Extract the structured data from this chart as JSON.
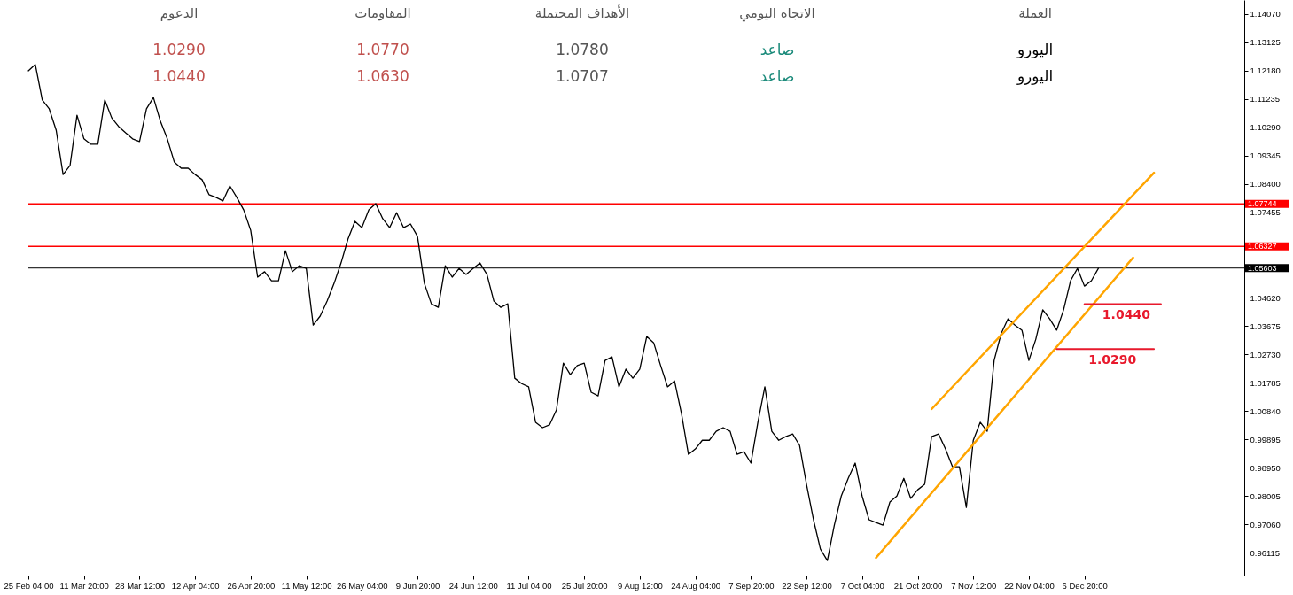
{
  "chart_data": {
    "type": "line",
    "categories": [
      "25 Feb 04:00",
      null,
      null,
      null,
      null,
      null,
      null,
      null,
      "11 Mar 20:00",
      null,
      null,
      null,
      null,
      null,
      null,
      null,
      "28 Mar 12:00",
      null,
      null,
      null,
      null,
      null,
      null,
      null,
      "12 Apr 04:00",
      null,
      null,
      null,
      null,
      null,
      null,
      null,
      "26 Apr 20:00",
      null,
      null,
      null,
      null,
      null,
      null,
      null,
      "11 May 12:00",
      null,
      null,
      null,
      null,
      null,
      null,
      null,
      "26 May 04:00",
      null,
      null,
      null,
      null,
      null,
      null,
      null,
      "9 Jun 20:00",
      null,
      null,
      null,
      null,
      null,
      null,
      null,
      "24 Jun 12:00",
      null,
      null,
      null,
      null,
      null,
      null,
      null,
      "11 Jul 04:00",
      null,
      null,
      null,
      null,
      null,
      null,
      null,
      "25 Jul 20:00",
      null,
      null,
      null,
      null,
      null,
      null,
      null,
      "9 Aug 12:00",
      null,
      null,
      null,
      null,
      null,
      null,
      null,
      "24 Aug 04:00",
      null,
      null,
      null,
      null,
      null,
      null,
      null,
      "7 Sep 20:00",
      null,
      null,
      null,
      null,
      null,
      null,
      null,
      "22 Sep 12:00",
      null,
      null,
      null,
      null,
      null,
      null,
      null,
      "7 Oct 04:00",
      null,
      null,
      null,
      null,
      null,
      null,
      null,
      "21 Oct 20:00",
      null,
      null,
      null,
      null,
      null,
      null,
      null,
      "7 Nov 12:00",
      null,
      null,
      null,
      null,
      null,
      null,
      null,
      "22 Nov 04:00",
      null,
      null,
      null,
      null,
      null,
      null,
      null,
      "6 Dec 20:00",
      null,
      null,
      null,
      null,
      null,
      null,
      null,
      null,
      null,
      null,
      null,
      null,
      null,
      null,
      null,
      null,
      null,
      null,
      null,
      null,
      null,
      null,
      null
    ],
    "series": [
      {
        "color": "#000000",
        "values": [
          1.1218,
          1.1239,
          1.1121,
          1.1091,
          1.102,
          1.0872,
          1.0902,
          1.107,
          1.0991,
          1.0973,
          1.0973,
          1.1121,
          1.1061,
          1.1032,
          1.1011,
          1.0991,
          1.0982,
          1.1091,
          1.1129,
          1.105,
          1.0991,
          1.0914,
          1.0893,
          1.0893,
          1.0872,
          1.0855,
          1.0805,
          1.0796,
          1.0784,
          1.0834,
          1.0796,
          1.0754,
          1.0686,
          1.053,
          1.0548,
          1.0518,
          1.0518,
          1.0618,
          1.0548,
          1.0568,
          1.0559,
          1.037,
          1.04,
          1.045,
          1.0509,
          1.0577,
          1.0657,
          1.0716,
          1.0695,
          1.0754,
          1.0775,
          1.0725,
          1.0695,
          1.0745,
          1.0695,
          1.0707,
          1.0666,
          1.0509,
          1.0441,
          1.0429,
          1.0568,
          1.053,
          1.0559,
          1.0539,
          1.0559,
          1.0577,
          1.0539,
          1.045,
          1.0429,
          1.0441,
          1.0193,
          1.0175,
          1.0164,
          1.0046,
          1.0028,
          1.0037,
          1.0087,
          1.0243,
          1.0205,
          1.0235,
          1.0243,
          1.0146,
          1.0134,
          1.0252,
          1.0264,
          1.0164,
          1.0223,
          1.0193,
          1.0223,
          1.0332,
          1.0311,
          1.0235,
          1.0164,
          1.0184,
          1.0075,
          0.9939,
          0.9957,
          0.9986,
          0.9986,
          1.0016,
          1.0028,
          1.0016,
          0.9939,
          0.9948,
          0.991,
          1.0046,
          1.0164,
          1.0016,
          0.9986,
          0.9998,
          1.0007,
          0.9969,
          0.9839,
          0.9721,
          0.9623,
          0.9585,
          0.9703,
          0.98,
          0.9859,
          0.991,
          0.98,
          0.9721,
          0.9712,
          0.9703,
          0.978,
          0.98,
          0.9859,
          0.9792,
          0.9821,
          0.9839,
          0.9998,
          1.0007,
          0.9957,
          0.9898,
          0.9898,
          0.9762,
          0.9986,
          1.0046,
          1.0016,
          1.0252,
          1.0341,
          1.0391,
          1.037,
          1.0353,
          1.0252,
          1.0323,
          1.0421,
          1.0391,
          1.0353,
          1.0421,
          1.0518,
          1.0559,
          1.05,
          1.0518,
          1.0559,
          null,
          null,
          null,
          null,
          null,
          null,
          null,
          null,
          null,
          null,
          null,
          null,
          null,
          null,
          null,
          null,
          null,
          null,
          null,
          null,
          null
        ]
      },
      {
        "color": "#ffa500",
        "values": [
          null,
          null,
          null,
          null,
          null,
          null,
          null,
          null,
          null,
          null,
          null,
          null,
          null,
          null,
          null,
          null,
          null,
          null,
          null,
          null,
          null,
          null,
          null,
          null,
          null,
          null,
          null,
          null,
          null,
          null,
          null,
          null,
          null,
          null,
          null,
          null,
          null,
          null,
          null,
          null,
          null,
          null,
          null,
          null,
          null,
          null,
          null,
          null,
          null,
          null,
          null,
          null,
          null,
          null,
          null,
          null,
          null,
          null,
          null,
          null,
          null,
          null,
          null,
          null,
          null,
          null,
          null,
          null,
          null,
          null,
          null,
          null,
          null,
          null,
          null,
          null,
          null,
          null,
          null,
          null,
          null,
          null,
          null,
          null,
          null,
          null,
          null,
          null,
          null,
          null,
          null,
          null,
          null,
          null,
          null,
          null,
          null,
          null,
          null,
          null,
          null,
          null,
          null,
          null,
          null,
          null,
          null,
          null,
          null,
          null,
          null,
          null,
          null,
          null,
          null,
          null,
          null,
          null,
          null,
          null,
          null,
          null,
          null,
          null,
          null,
          null,
          null,
          null,
          null,
          null,
          1.009,
          null,
          null,
          null,
          null,
          null,
          null,
          null,
          null,
          null,
          null,
          null,
          null,
          null,
          null,
          null,
          null,
          null,
          null,
          null,
          null,
          null,
          null,
          null,
          null,
          null,
          null,
          null,
          null,
          null,
          null,
          null,
          1.0878,
          null,
          null,
          null,
          null,
          null,
          null,
          null,
          null,
          null,
          null,
          null,
          null,
          null
        ]
      },
      {
        "color": "#ffa500",
        "values": [
          null,
          null,
          null,
          null,
          null,
          null,
          null,
          null,
          null,
          null,
          null,
          null,
          null,
          null,
          null,
          null,
          null,
          null,
          null,
          null,
          null,
          null,
          null,
          null,
          null,
          null,
          null,
          null,
          null,
          null,
          null,
          null,
          null,
          null,
          null,
          null,
          null,
          null,
          null,
          null,
          null,
          null,
          null,
          null,
          null,
          null,
          null,
          null,
          null,
          null,
          null,
          null,
          null,
          null,
          null,
          null,
          null,
          null,
          null,
          null,
          null,
          null,
          null,
          null,
          null,
          null,
          null,
          null,
          null,
          null,
          null,
          null,
          null,
          null,
          null,
          null,
          null,
          null,
          null,
          null,
          null,
          null,
          null,
          null,
          null,
          null,
          null,
          null,
          null,
          null,
          null,
          null,
          null,
          null,
          null,
          null,
          null,
          null,
          null,
          null,
          null,
          null,
          null,
          null,
          null,
          null,
          null,
          null,
          null,
          null,
          null,
          null,
          null,
          null,
          null,
          null,
          null,
          null,
          null,
          null,
          null,
          null,
          0.9594,
          null,
          null,
          null,
          null,
          null,
          null,
          null,
          null,
          null,
          null,
          null,
          null,
          null,
          null,
          null,
          null,
          null,
          null,
          null,
          null,
          null,
          null,
          null,
          null,
          null,
          null,
          null,
          null,
          null,
          null,
          null,
          null,
          null,
          null,
          null,
          null,
          1.0595,
          null,
          null,
          null,
          null,
          null,
          null,
          null,
          null,
          null,
          null,
          null,
          null,
          null,
          null,
          null,
          null
        ]
      },
      {
        "name": "1.0440",
        "color": "#e8192c",
        "values": [
          null,
          null,
          null,
          null,
          null,
          null,
          null,
          null,
          null,
          null,
          null,
          null,
          null,
          null,
          null,
          null,
          null,
          null,
          null,
          null,
          null,
          null,
          null,
          null,
          null,
          null,
          null,
          null,
          null,
          null,
          null,
          null,
          null,
          null,
          null,
          null,
          null,
          null,
          null,
          null,
          null,
          null,
          null,
          null,
          null,
          null,
          null,
          null,
          null,
          null,
          null,
          null,
          null,
          null,
          null,
          null,
          null,
          null,
          null,
          null,
          null,
          null,
          null,
          null,
          null,
          null,
          null,
          null,
          null,
          null,
          null,
          null,
          null,
          null,
          null,
          null,
          null,
          null,
          null,
          null,
          null,
          null,
          null,
          null,
          null,
          null,
          null,
          null,
          null,
          null,
          null,
          null,
          null,
          null,
          null,
          null,
          null,
          null,
          null,
          null,
          null,
          null,
          null,
          null,
          null,
          null,
          null,
          null,
          null,
          null,
          null,
          null,
          null,
          null,
          null,
          null,
          null,
          null,
          null,
          null,
          null,
          null,
          null,
          null,
          null,
          null,
          null,
          null,
          null,
          null,
          null,
          null,
          null,
          null,
          null,
          null,
          null,
          null,
          null,
          null,
          null,
          null,
          null,
          null,
          null,
          null,
          null,
          null,
          null,
          null,
          null,
          null,
          1.044,
          null,
          null,
          null,
          null,
          null,
          null,
          null,
          null,
          null,
          null,
          1.044,
          null,
          null,
          null,
          null,
          null,
          null,
          null,
          null,
          null,
          null,
          null,
          null
        ]
      },
      {
        "name": "1.0290",
        "color": "#e8192c",
        "values": [
          null,
          null,
          null,
          null,
          null,
          null,
          null,
          null,
          null,
          null,
          null,
          null,
          null,
          null,
          null,
          null,
          null,
          null,
          null,
          null,
          null,
          null,
          null,
          null,
          null,
          null,
          null,
          null,
          null,
          null,
          null,
          null,
          null,
          null,
          null,
          null,
          null,
          null,
          null,
          null,
          null,
          null,
          null,
          null,
          null,
          null,
          null,
          null,
          null,
          null,
          null,
          null,
          null,
          null,
          null,
          null,
          null,
          null,
          null,
          null,
          null,
          null,
          null,
          null,
          null,
          null,
          null,
          null,
          null,
          null,
          null,
          null,
          null,
          null,
          null,
          null,
          null,
          null,
          null,
          null,
          null,
          null,
          null,
          null,
          null,
          null,
          null,
          null,
          null,
          null,
          null,
          null,
          null,
          null,
          null,
          null,
          null,
          null,
          null,
          null,
          null,
          null,
          null,
          null,
          null,
          null,
          null,
          null,
          null,
          null,
          null,
          null,
          null,
          null,
          null,
          null,
          null,
          null,
          null,
          null,
          null,
          null,
          null,
          null,
          null,
          null,
          null,
          null,
          null,
          null,
          null,
          null,
          null,
          null,
          null,
          null,
          null,
          null,
          null,
          null,
          null,
          null,
          null,
          null,
          null,
          null,
          null,
          null,
          1.029,
          null,
          null,
          null,
          null,
          null,
          null,
          null,
          null,
          null,
          null,
          null,
          null,
          null,
          1.029,
          null,
          null,
          null,
          null,
          null,
          null,
          null,
          null,
          null,
          null,
          null,
          null,
          null
        ]
      }
    ],
    "ylim": [
      0.9535,
      1.1454
    ],
    "yticks": [
      {
        "value": 1.1407,
        "label": "1.14070"
      },
      {
        "value": 1.13125,
        "label": "1.13125"
      },
      {
        "value": 1.1218,
        "label": "1.12180"
      },
      {
        "value": 1.11235,
        "label": "1.11235"
      },
      {
        "value": 1.1029,
        "label": "1.10290"
      },
      {
        "value": 1.09345,
        "label": "1.09345"
      },
      {
        "value": 1.084,
        "label": "1.08400"
      },
      {
        "value": 1.07455,
        "label": "1.07455"
      },
      {
        "value": 1.0462,
        "label": "1.04620"
      },
      {
        "value": 1.03675,
        "label": "1.03675"
      },
      {
        "value": 1.0273,
        "label": "1.02730"
      },
      {
        "value": 1.01785,
        "label": "1.01785"
      },
      {
        "value": 1.0084,
        "label": "1.00840"
      },
      {
        "value": 0.99895,
        "label": "0.99895"
      },
      {
        "value": 0.9895,
        "label": "0.98950"
      },
      {
        "value": 0.98005,
        "label": "0.98005"
      },
      {
        "value": 0.9706,
        "label": "0.97060"
      },
      {
        "value": 0.96115,
        "label": "0.96115"
      }
    ],
    "ref_lines": [
      {
        "axis": "y",
        "value": 1.07744,
        "label": "1.07744",
        "color": "#ff0000"
      },
      {
        "axis": "y",
        "value": 1.06327,
        "label": "1.06327",
        "color": "#ff0000"
      },
      {
        "axis": "y",
        "value": 1.05603,
        "label": "1.05603",
        "color": "#000000"
      }
    ],
    "annotations": [
      "العملة",
      "الاتجاه اليومي",
      "الأهداف المحتملة",
      "المقاومات",
      "الدعوم",
      "اليورو",
      "صاعد",
      "1.0780",
      "1.0770",
      "1.0290",
      "اليورو",
      "صاعد",
      "1.0707",
      "1.0630",
      "1.0440"
    ]
  }
}
